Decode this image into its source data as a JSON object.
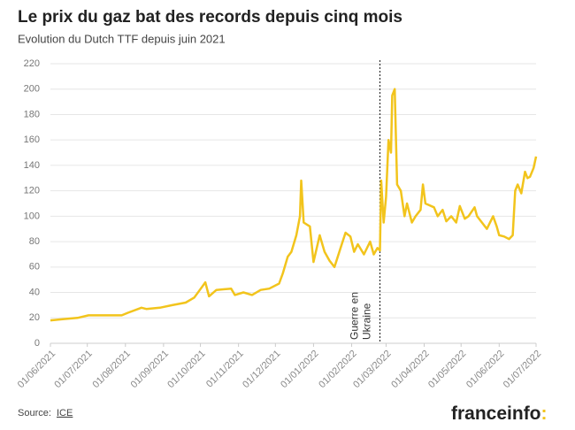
{
  "chart_data": {
    "type": "line",
    "title": "Le prix du gaz bat des records depuis cinq mois",
    "subtitle": "Evolution du Dutch TTF depuis juin 2021",
    "x": [
      "01/06/2021",
      "11/06/2021",
      "23/06/2021",
      "02/07/2021",
      "16/07/2021",
      "29/07/2021",
      "03/08/2021",
      "14/08/2021",
      "18/08/2021",
      "29/08/2021",
      "08/09/2021",
      "19/09/2021",
      "26/09/2021",
      "02/10/2021",
      "05/10/2021",
      "08/10/2021",
      "14/10/2021",
      "26/10/2021",
      "29/10/2021",
      "05/11/2021",
      "12/11/2021",
      "19/11/2021",
      "26/11/2021",
      "04/12/2021",
      "07/12/2021",
      "11/12/2021",
      "14/12/2021",
      "18/12/2021",
      "21/12/2021",
      "22/12/2021",
      "24/12/2021",
      "29/12/2021",
      "01/01/2022",
      "06/01/2022",
      "10/01/2022",
      "14/01/2022",
      "18/01/2022",
      "23/01/2022",
      "27/01/2022",
      "31/01/2022",
      "03/02/2022",
      "06/02/2022",
      "11/02/2022",
      "16/02/2022",
      "19/02/2022",
      "22/02/2022",
      "24/02/2022",
      "25/02/2022",
      "27/02/2022",
      "01/03/2022",
      "03/03/2022",
      "05/03/2022",
      "06/03/2022",
      "08/03/2022",
      "10/03/2022",
      "13/03/2022",
      "16/03/2022",
      "18/03/2022",
      "22/03/2022",
      "25/03/2022",
      "29/03/2022",
      "31/03/2022",
      "02/04/2022",
      "09/04/2022",
      "12/04/2022",
      "16/04/2022",
      "19/04/2022",
      "23/04/2022",
      "27/04/2022",
      "30/04/2022",
      "04/05/2022",
      "07/05/2022",
      "12/05/2022",
      "14/05/2022",
      "18/05/2022",
      "22/05/2022",
      "27/05/2022",
      "30/05/2022",
      "01/06/2022",
      "05/06/2022",
      "09/06/2022",
      "12/06/2022",
      "14/06/2022",
      "16/06/2022",
      "19/06/2022",
      "22/06/2022",
      "24/06/2022",
      "26/06/2022",
      "29/06/2022",
      "01/07/2022"
    ],
    "series": [
      {
        "name": "Dutch TTF",
        "color": "#f2c41c",
        "values": [
          18,
          19,
          20,
          22,
          22,
          22,
          24,
          28,
          27,
          28,
          30,
          32,
          36,
          44,
          48,
          37,
          42,
          43,
          38,
          40,
          38,
          42,
          43,
          47,
          55,
          68,
          72,
          85,
          100,
          128,
          95,
          92,
          64,
          85,
          72,
          65,
          60,
          75,
          87,
          84,
          72,
          78,
          70,
          80,
          70,
          75,
          73,
          128,
          95,
          115,
          160,
          150,
          195,
          200,
          125,
          120,
          100,
          110,
          95,
          100,
          105,
          125,
          110,
          107,
          100,
          105,
          96,
          100,
          95,
          108,
          98,
          100,
          107,
          100,
          95,
          90,
          100,
          92,
          85,
          84,
          82,
          85,
          120,
          125,
          118,
          135,
          130,
          131,
          138,
          147
        ]
      }
    ],
    "xlim": [
      "01/06/2021",
      "01/07/2022"
    ],
    "xticks": [
      "01/06/2021",
      "01/07/2021",
      "01/08/2021",
      "01/09/2021",
      "01/10/2021",
      "01/11/2021",
      "01/12/2021",
      "01/01/2022",
      "01/02/2022",
      "01/03/2022",
      "01/04/2022",
      "01/05/2022",
      "01/06/2022",
      "01/07/2022"
    ],
    "ylim": [
      0,
      220
    ],
    "yticks": [
      0,
      20,
      40,
      60,
      80,
      100,
      120,
      140,
      160,
      180,
      200,
      220
    ],
    "grid": true,
    "annotation": {
      "lines": [
        "Guerre en",
        "Ukraine"
      ],
      "x": "24/02/2022"
    },
    "source_label": "Source:",
    "source": "ICE",
    "brand": [
      "franceinfo",
      ":"
    ]
  }
}
